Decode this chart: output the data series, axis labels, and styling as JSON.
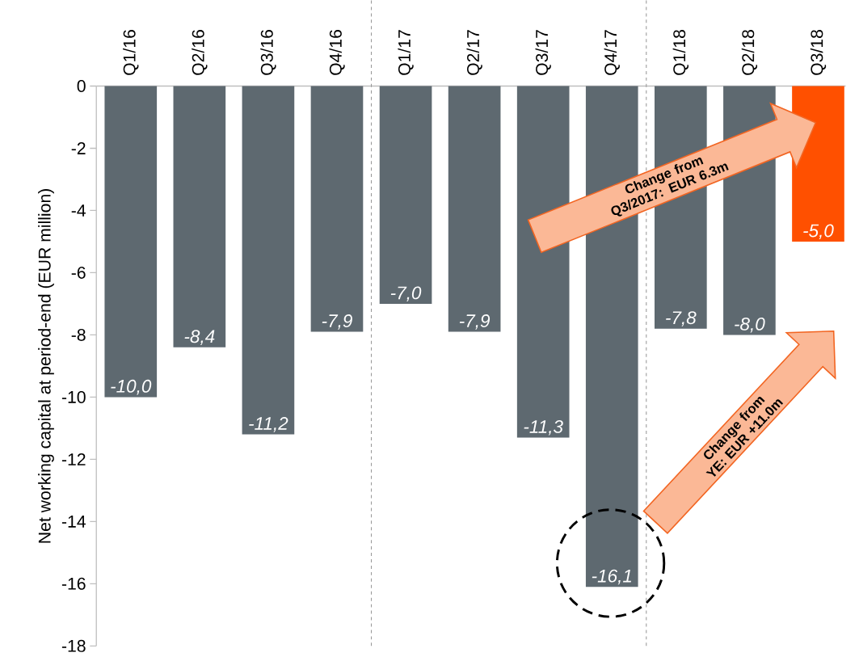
{
  "chart_data": {
    "type": "bar",
    "ylabel": "Net working capital at period-end (EUR million)",
    "categories": [
      "Q1/16",
      "Q2/16",
      "Q3/16",
      "Q4/16",
      "Q1/17",
      "Q2/17",
      "Q3/17",
      "Q4/17",
      "Q1/18",
      "Q2/18",
      "Q3/18"
    ],
    "values": [
      -10.0,
      -8.4,
      -11.2,
      -7.9,
      -7.0,
      -7.9,
      -11.3,
      -16.1,
      -7.8,
      -8.0,
      -5.0
    ],
    "value_labels": [
      "-10,0",
      "-8,4",
      "-11,2",
      "-7,9",
      "-7,0",
      "-7,9",
      "-11,3",
      "-16,1",
      "-7,8",
      "-8,0",
      "-5,0"
    ],
    "colors": [
      "#5e6970",
      "#5e6970",
      "#5e6970",
      "#5e6970",
      "#5e6970",
      "#5e6970",
      "#5e6970",
      "#5e6970",
      "#5e6970",
      "#5e6970",
      "#ff5000"
    ],
    "ylim": [
      -18,
      0
    ],
    "yticks": [
      0,
      -2,
      -4,
      -6,
      -8,
      -10,
      -12,
      -14,
      -16,
      -18
    ],
    "annotations": [
      "Change from Q3/2017: EUR 6.3m",
      "Change from YE: EUR +11.0m"
    ]
  }
}
